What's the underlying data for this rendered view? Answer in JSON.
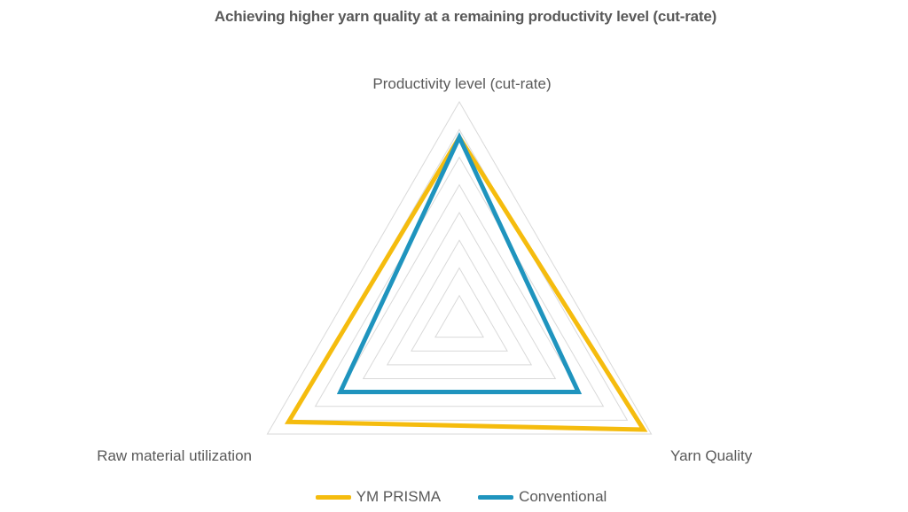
{
  "chart_data": {
    "type": "radar",
    "title": "Achieving higher yarn quality at a remaining productivity level (cut-rate)",
    "axes": [
      "Productivity level (cut-rate)",
      "Yarn Quality",
      "Raw material utilization"
    ],
    "range": [
      0,
      10
    ],
    "grid_levels": 8,
    "grid": true,
    "legend_position": "bottom",
    "series": [
      {
        "name": "YM PRISMA",
        "color": "#F5BC0E",
        "values": [
          8.4,
          9.6,
          8.9
        ]
      },
      {
        "name": "Conventional",
        "color": "#1F94BE",
        "values": [
          8.4,
          6.2,
          6.2
        ]
      }
    ]
  }
}
